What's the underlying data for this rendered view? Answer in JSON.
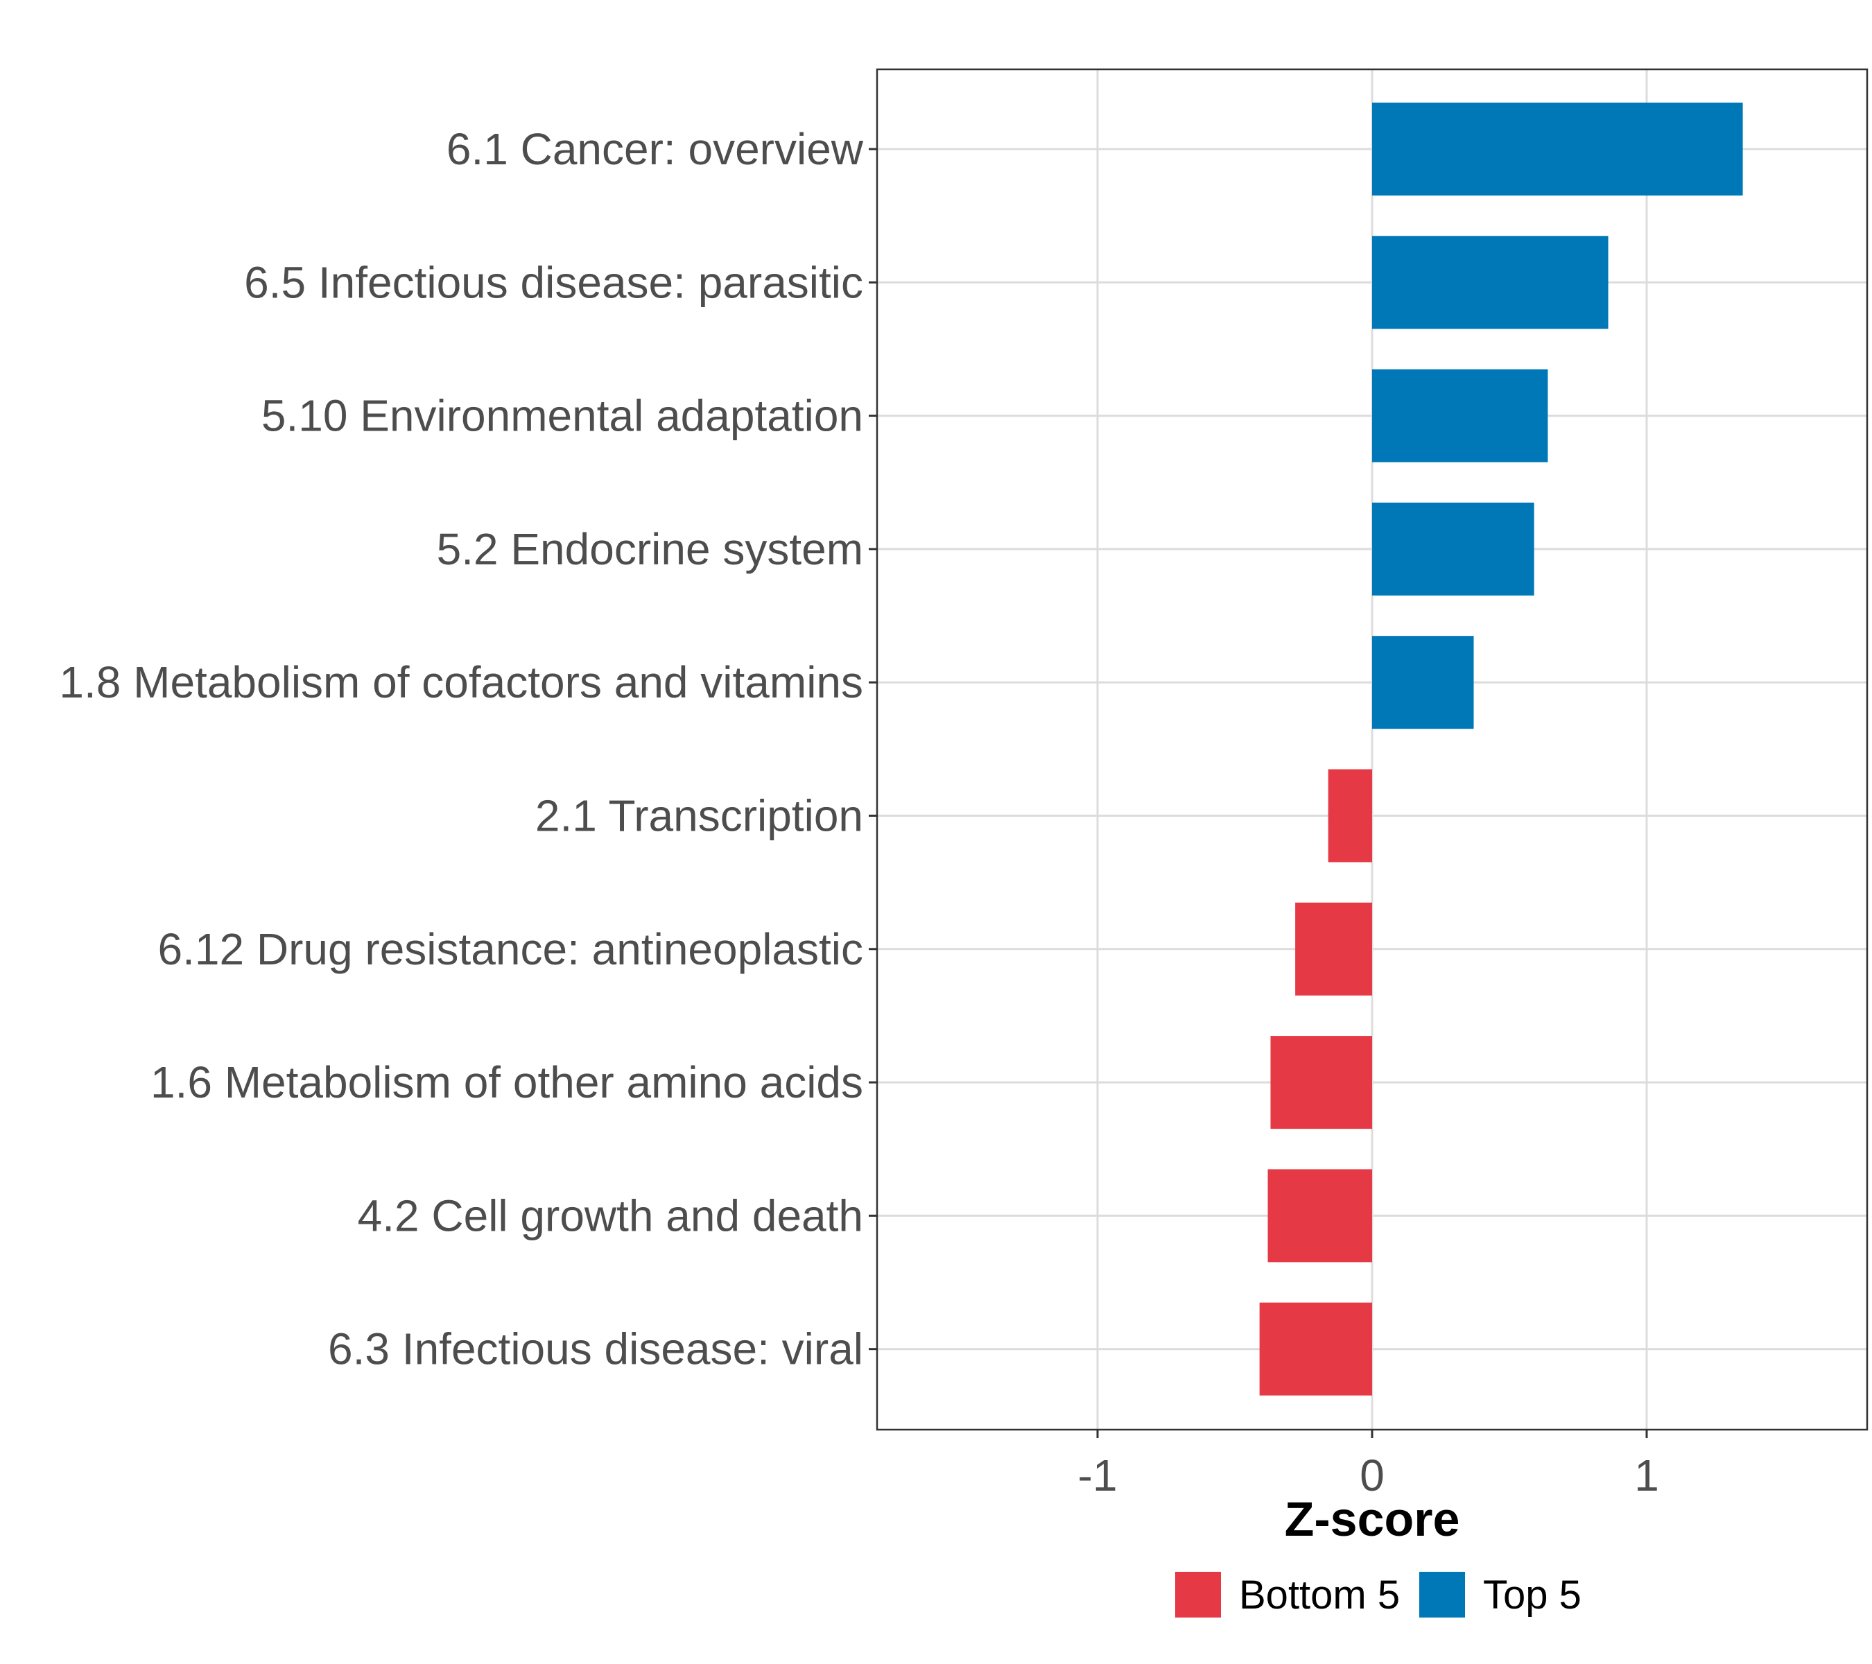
{
  "chart_data": {
    "type": "bar",
    "orientation": "horizontal",
    "title": "",
    "xlabel": "Z-score",
    "ylabel": "",
    "xlim": [
      -1.8,
      1.8
    ],
    "xticks": [
      -1,
      0,
      1
    ],
    "xtick_labels": [
      "-1",
      "0",
      "1"
    ],
    "grid": true,
    "legend_position": "bottom",
    "categories": [
      "6.1 Cancer: overview",
      "6.5 Infectious disease: parasitic",
      "5.10 Environmental adaptation",
      "5.2 Endocrine system",
      "1.8 Metabolism of cofactors and vitamins",
      "2.1 Transcription",
      "6.12 Drug resistance: antineoplastic",
      "1.6 Metabolism of other amino acids",
      "4.2 Cell growth and death",
      "6.3 Infectious disease: viral"
    ],
    "values": [
      1.35,
      0.86,
      0.64,
      0.59,
      0.37,
      -0.16,
      -0.28,
      -0.37,
      -0.38,
      -0.41
    ],
    "groups": [
      "Top 5",
      "Top 5",
      "Top 5",
      "Top 5",
      "Top 5",
      "Bottom 5",
      "Bottom 5",
      "Bottom 5",
      "Bottom 5",
      "Bottom 5"
    ],
    "legend": [
      {
        "name": "Bottom 5",
        "color": "#e63946"
      },
      {
        "name": "Top 5",
        "color": "#0077b6"
      }
    ]
  }
}
